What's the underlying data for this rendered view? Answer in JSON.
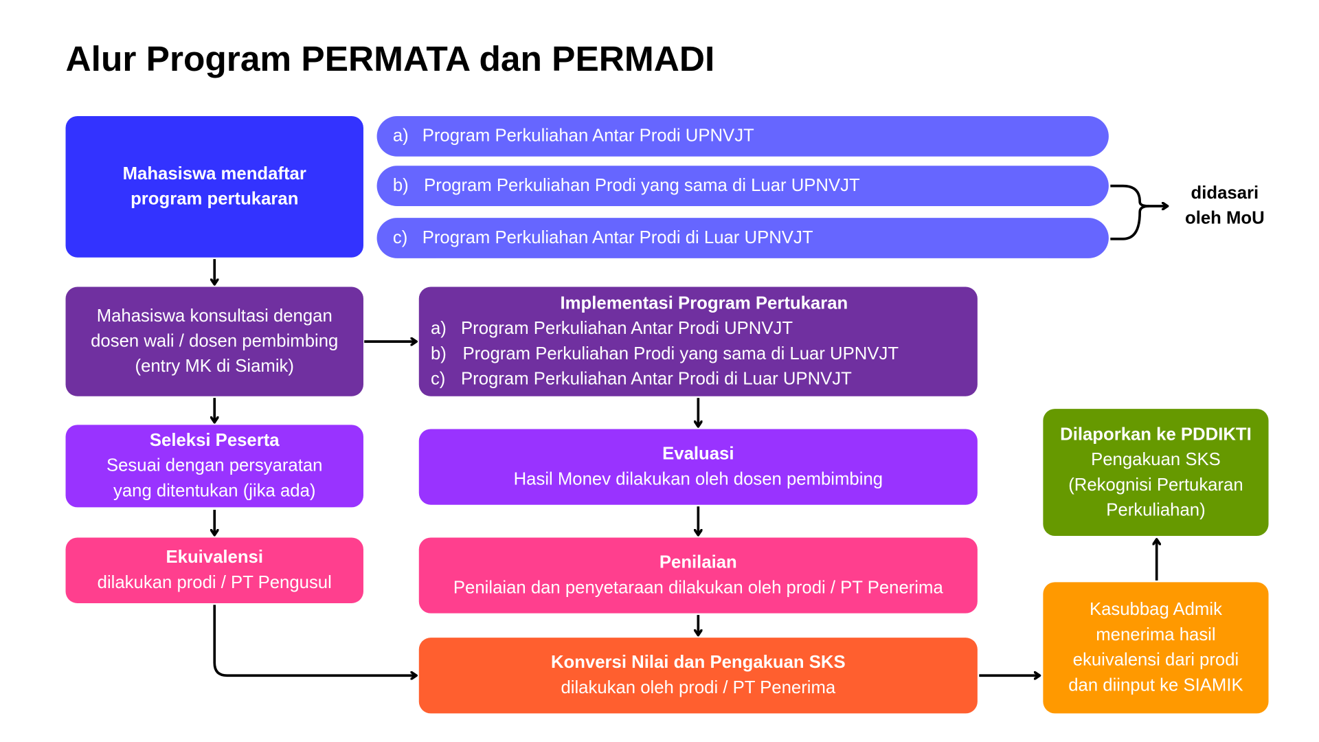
{
  "title": "Alur Program PERMATA dan PERMADI",
  "colors": {
    "blue": "#3333FF",
    "lavender": "#6666FF",
    "purple": "#7030A0",
    "violet": "#9933FF",
    "pink": "#FF3F8E",
    "orange": "#FF5F2F",
    "amber": "#FF9900",
    "green": "#669900"
  },
  "programs": [
    {
      "letter": "a)",
      "label": "Program Perkuliahan Antar Prodi UPNVJT"
    },
    {
      "letter": "b)",
      "label": "Program Perkuliahan Prodi yang sama di Luar UPNVJT"
    },
    {
      "letter": "c)",
      "label": "Program Perkuliahan Antar Prodi di Luar UPNVJT"
    }
  ],
  "mou": {
    "line1": "didasari",
    "line2": "oleh MoU"
  },
  "steps": {
    "daftar": {
      "line1": "Mahasiswa mendaftar",
      "line2": "program pertukaran"
    },
    "konsultasi": {
      "line1": "Mahasiswa konsultasi dengan",
      "line2": "dosen wali / dosen pembimbing",
      "line3": "(entry MK di Siamik)"
    },
    "seleksi": {
      "title": "Seleksi Peserta",
      "line1": "Sesuai dengan persyaratan",
      "line2": "yang ditentukan (jika ada)"
    },
    "ekuivalensi": {
      "title": "Ekuivalensi",
      "line1": "dilakukan prodi / PT Pengusul"
    },
    "implementasi": {
      "title": "Implementasi Program Pertukaran"
    },
    "evaluasi": {
      "title": "Evaluasi",
      "line1": "Hasil Monev dilakukan oleh dosen pembimbing"
    },
    "penilaian": {
      "title": "Penilaian",
      "line1": "Penilaian dan penyetaraan dilakukan oleh prodi / PT Penerima"
    },
    "konversi": {
      "title": "Konversi Nilai dan Pengakuan SKS",
      "line1": "dilakukan oleh prodi / PT Penerima"
    },
    "kasubbag": {
      "line1": "Kasubbag Admik",
      "line2": "menerima hasil",
      "line3": "ekuivalensi dari prodi",
      "line4": "dan diinput ke SIAMIK"
    },
    "pddikti": {
      "title": "Dilaporkan ke PDDIKTI",
      "line1": "Pengakuan SKS",
      "line2": "(Rekognisi Pertukaran",
      "line3": "Perkuliahan)"
    }
  }
}
